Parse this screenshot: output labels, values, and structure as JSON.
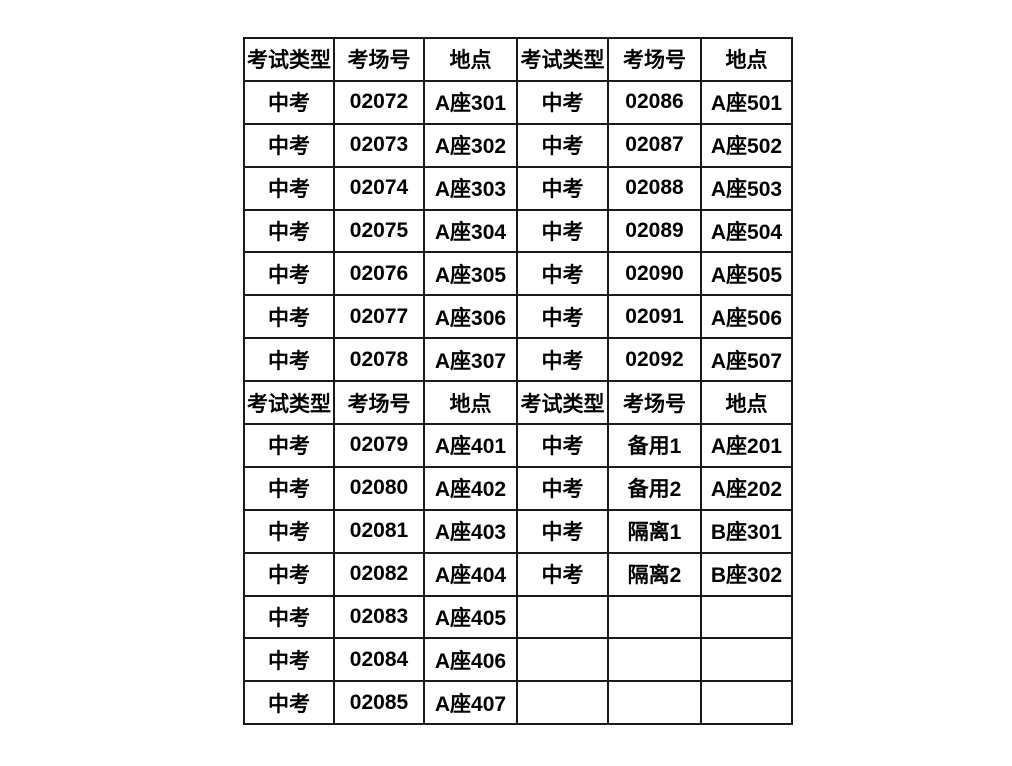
{
  "page": {
    "background_color": "#ffffff",
    "text_color": "#000000",
    "border_color": "#1a1a1a"
  },
  "table": {
    "column_headers": [
      "考试类型",
      "考场号",
      "地点",
      "考试类型",
      "考场号",
      "地点"
    ],
    "rows": [
      {
        "type": "header",
        "cells": [
          "考试类型",
          "考场号",
          "地点",
          "考试类型",
          "考场号",
          "地点"
        ]
      },
      {
        "type": "data",
        "cells": [
          "中考",
          "02072",
          "A座301",
          "中考",
          "02086",
          "A座501"
        ]
      },
      {
        "type": "data",
        "cells": [
          "中考",
          "02073",
          "A座302",
          "中考",
          "02087",
          "A座502"
        ]
      },
      {
        "type": "data",
        "cells": [
          "中考",
          "02074",
          "A座303",
          "中考",
          "02088",
          "A座503"
        ]
      },
      {
        "type": "data",
        "cells": [
          "中考",
          "02075",
          "A座304",
          "中考",
          "02089",
          "A座504"
        ]
      },
      {
        "type": "data",
        "cells": [
          "中考",
          "02076",
          "A座305",
          "中考",
          "02090",
          "A座505"
        ]
      },
      {
        "type": "data",
        "cells": [
          "中考",
          "02077",
          "A座306",
          "中考",
          "02091",
          "A座506"
        ]
      },
      {
        "type": "data",
        "cells": [
          "中考",
          "02078",
          "A座307",
          "中考",
          "02092",
          "A座507"
        ]
      },
      {
        "type": "header",
        "cells": [
          "考试类型",
          "考场号",
          "地点",
          "考试类型",
          "考场号",
          "地点"
        ]
      },
      {
        "type": "data",
        "cells": [
          "中考",
          "02079",
          "A座401",
          "中考",
          "备用1",
          "A座201"
        ]
      },
      {
        "type": "data",
        "cells": [
          "中考",
          "02080",
          "A座402",
          "中考",
          "备用2",
          "A座202"
        ]
      },
      {
        "type": "data",
        "cells": [
          "中考",
          "02081",
          "A座403",
          "中考",
          "隔离1",
          "B座301"
        ]
      },
      {
        "type": "data",
        "cells": [
          "中考",
          "02082",
          "A座404",
          "中考",
          "隔离2",
          "B座302"
        ]
      },
      {
        "type": "data",
        "cells": [
          "中考",
          "02083",
          "A座405",
          "",
          "",
          ""
        ]
      },
      {
        "type": "data",
        "cells": [
          "中考",
          "02084",
          "A座406",
          "",
          "",
          ""
        ]
      },
      {
        "type": "data",
        "cells": [
          "中考",
          "02085",
          "A座407",
          "",
          "",
          ""
        ]
      }
    ]
  }
}
